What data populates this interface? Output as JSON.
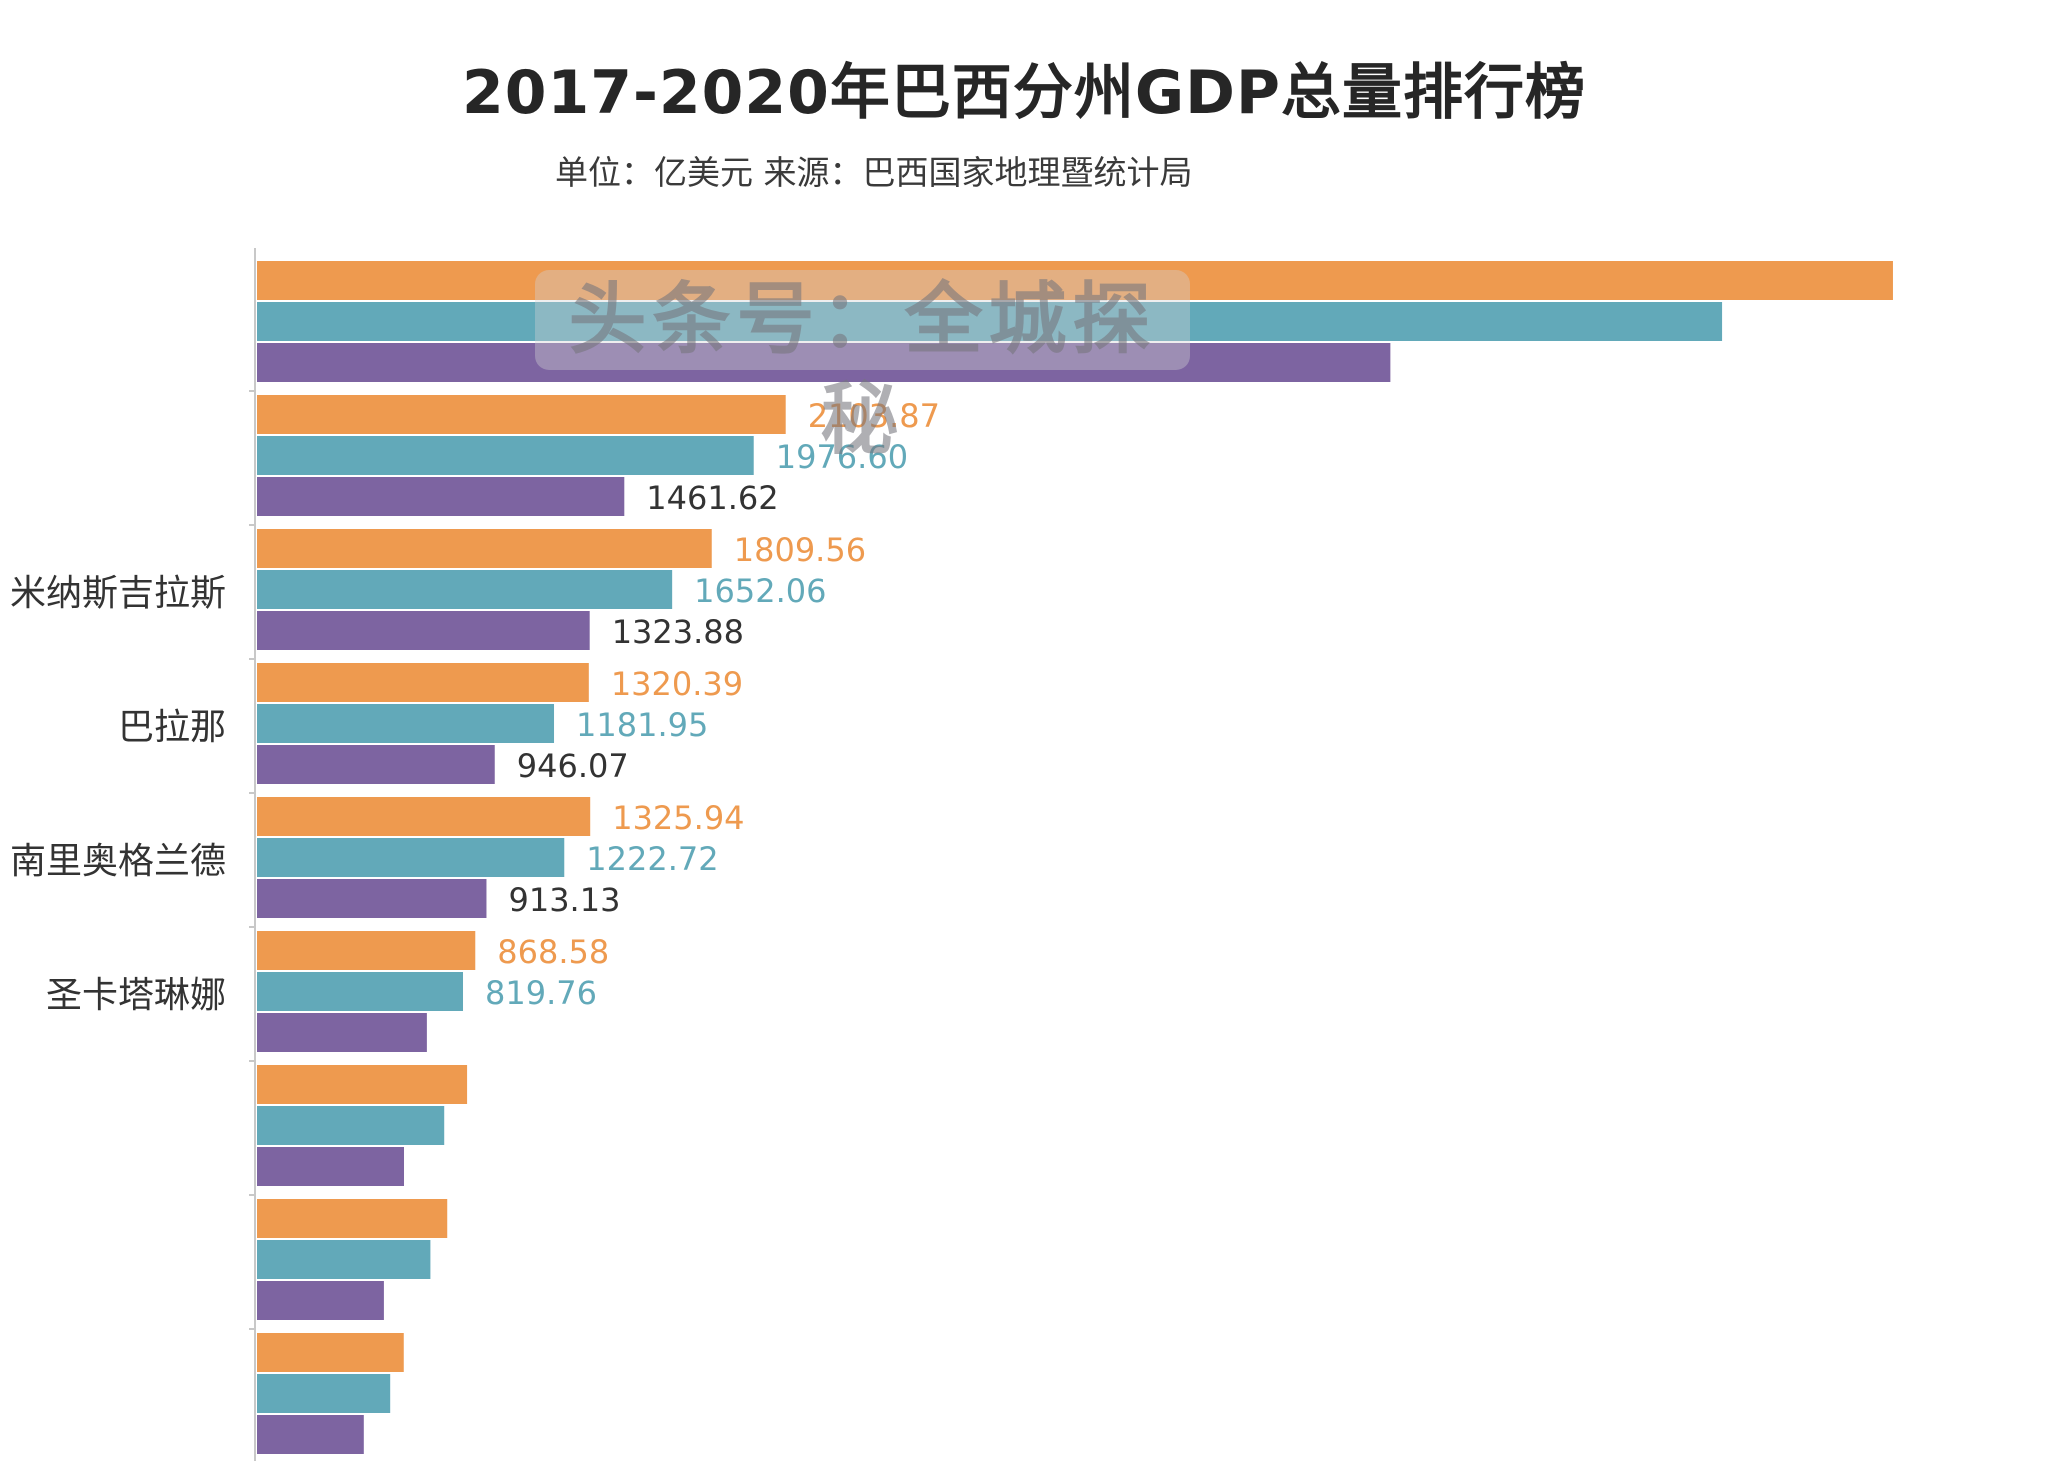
{
  "colors": {
    "2020": "#ee9a4f",
    "2019": "#62a9b9",
    "2017": "#7d64a1",
    "axis": "#c8c8c8",
    "label_text": "#333333"
  },
  "watermark": "头条号：全城探秘",
  "chart_data": {
    "type": "bar",
    "orientation": "horizontal",
    "title": "2017-2020年巴西分州GDP总量排行榜",
    "subtitle": "单位：亿美元 来源：巴西国家地理暨统计局",
    "xlim": [
      0,
      6500
    ],
    "grid": false,
    "legend": "none",
    "categories": [
      "",
      "",
      "米纳斯吉拉斯",
      "巴拉那",
      "南里奥格兰德",
      "圣卡塔琳娜",
      "",
      "",
      ""
    ],
    "series": [
      {
        "key": "2020",
        "values": [
          6510,
          2103.87,
          1809.56,
          1320.39,
          1325.94,
          868.58,
          836,
          757,
          584
        ]
      },
      {
        "key": "2019",
        "values": [
          5830,
          1976.6,
          1652.06,
          1181.95,
          1222.72,
          819.76,
          745,
          690,
          530
        ]
      },
      {
        "key": "2017",
        "values": [
          4510,
          1461.62,
          1323.88,
          946.07,
          913.13,
          676,
          585,
          505,
          425
        ]
      }
    ],
    "data_labels": [
      [
        null,
        null,
        null
      ],
      [
        "2103.87",
        "1976.60",
        "1461.62"
      ],
      [
        "1809.56",
        "1652.06",
        "1323.88"
      ],
      [
        "1320.39",
        "1181.95",
        "946.07"
      ],
      [
        "1325.94",
        "1222.72",
        "913.13"
      ],
      [
        "868.58",
        "819.76",
        null
      ],
      [
        null,
        null,
        null
      ],
      [
        null,
        null,
        null
      ],
      [
        null,
        null,
        null
      ]
    ]
  }
}
